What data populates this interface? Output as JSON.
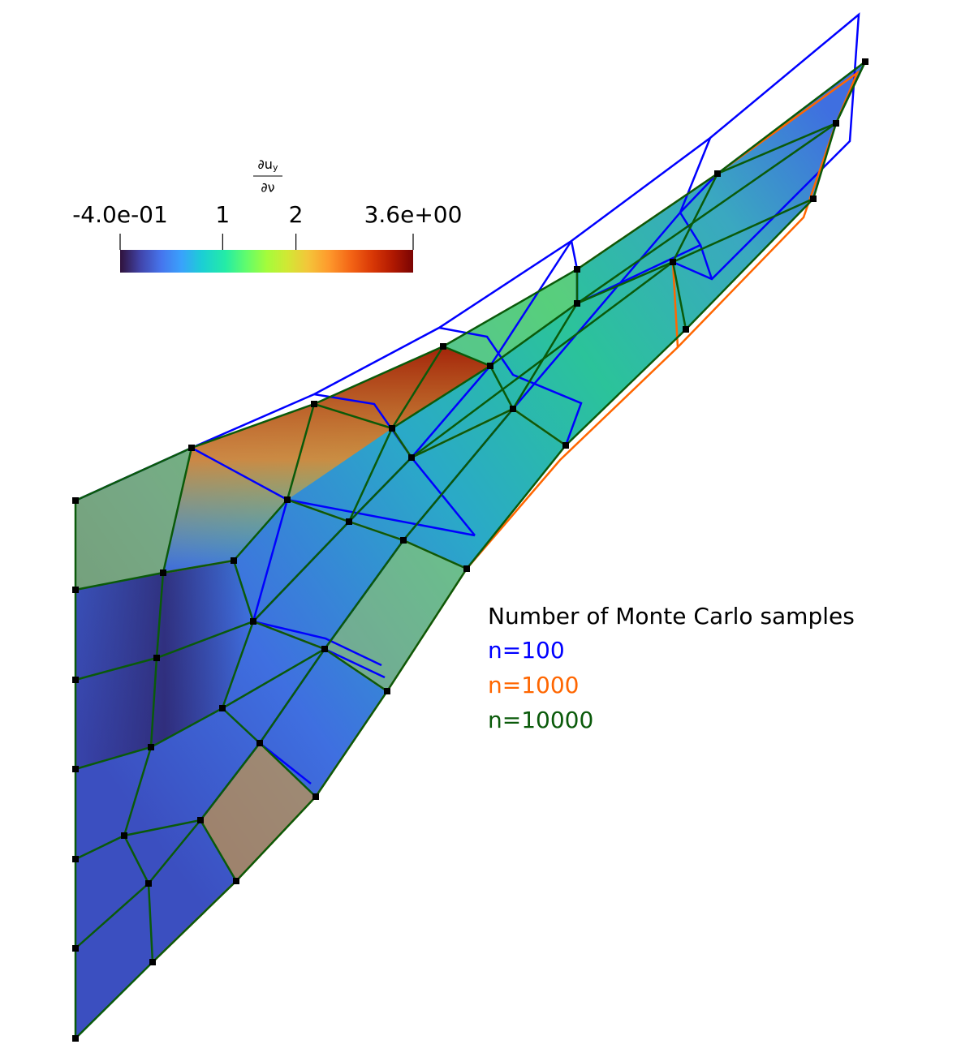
{
  "colorbar": {
    "title": {
      "numerator": "∂u",
      "subscript": "y",
      "denominator": "∂ν"
    },
    "range": [
      -0.4,
      3.6
    ],
    "ticks": [
      {
        "value": -0.4,
        "label": "-4.0e-01"
      },
      1,
      2,
      {
        "value": 3.6,
        "label": "3.6e+00"
      }
    ]
  },
  "legend": {
    "title": "Number of Monte Carlo samples",
    "items": [
      {
        "label": "n=100",
        "color": "#0000ff"
      },
      {
        "label": "n=1000",
        "color": "#ff6600"
      },
      {
        "label": "n=10000",
        "color": "#0a5a0a"
      }
    ]
  }
}
